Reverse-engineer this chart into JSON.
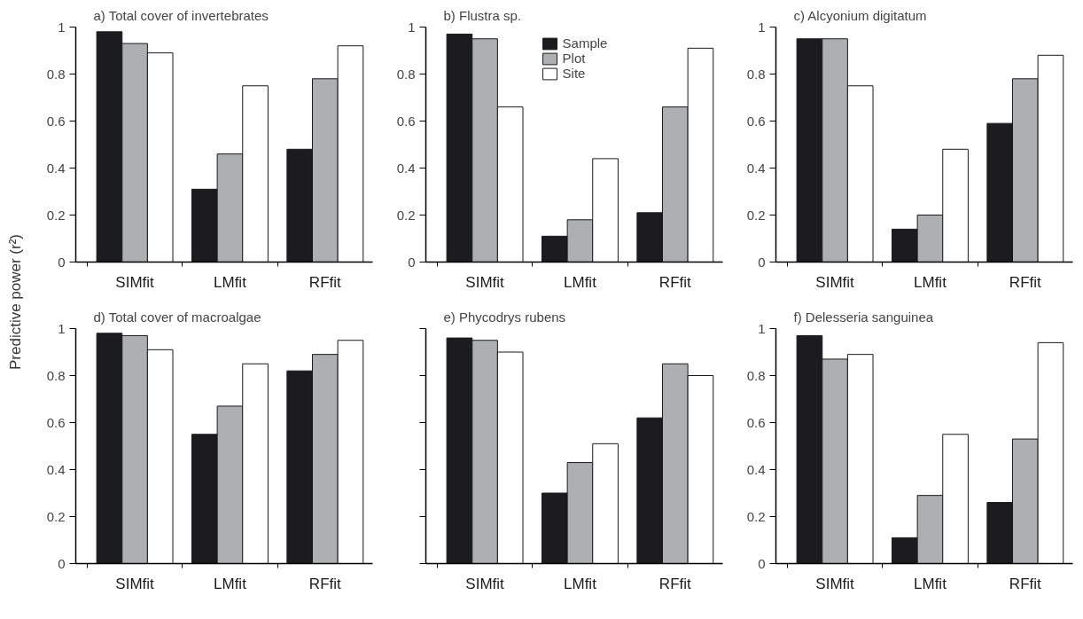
{
  "chart_data": [
    {
      "type": "bar",
      "title": "a) Total cover of invertebrates",
      "ylabel": "Predictive power (r²)",
      "categories": [
        "SIMfit",
        "LMfit",
        "RFfit"
      ],
      "ylim": [
        0,
        1
      ],
      "yticks": [
        0,
        0.2,
        0.4,
        0.6,
        0.8,
        1
      ],
      "grid": false,
      "legend": false,
      "series": [
        {
          "color": "#1c1c1e",
          "values": [
            0.98,
            0.31,
            0.48
          ]
        },
        {
          "color": "#aeafb1",
          "values": [
            0.93,
            0.46,
            0.78
          ]
        },
        {
          "color": "#ffffff",
          "values": [
            0.89,
            0.75,
            0.92
          ]
        }
      ]
    },
    {
      "type": "bar",
      "title": "b) Flustra sp.",
      "categories": [
        "SIMfit",
        "LMfit",
        "RFfit"
      ],
      "ylim": [
        0,
        1
      ],
      "yticks": [
        0,
        0.2,
        0.4,
        0.6,
        0.8,
        1
      ],
      "grid": false,
      "legend": "top",
      "series": [
        {
          "name": "Sample",
          "color": "#1c1c1e",
          "values": [
            0.97,
            0.11,
            0.21
          ]
        },
        {
          "name": "Plot",
          "color": "#aeafb1",
          "values": [
            0.95,
            0.18,
            0.66
          ]
        },
        {
          "name": "Site",
          "color": "#ffffff",
          "values": [
            0.66,
            0.44,
            0.91
          ]
        }
      ]
    },
    {
      "type": "bar",
      "title": "c) Alcyonium digitatum",
      "categories": [
        "SIMfit",
        "LMfit",
        "RFfit"
      ],
      "ylim": [
        0,
        1
      ],
      "yticks": [
        0,
        0.2,
        0.4,
        0.6,
        0.8,
        1
      ],
      "grid": false,
      "legend": false,
      "series": [
        {
          "color": "#1c1c1e",
          "values": [
            0.95,
            0.14,
            0.59
          ]
        },
        {
          "color": "#aeafb1",
          "values": [
            0.95,
            0.2,
            0.78
          ]
        },
        {
          "color": "#ffffff",
          "values": [
            0.75,
            0.48,
            0.88
          ]
        }
      ]
    },
    {
      "type": "bar",
      "title": "d) Total cover of macroalgae",
      "categories": [
        "SIMfit",
        "LMfit",
        "RFfit"
      ],
      "ylim": [
        0,
        1
      ],
      "yticks": [
        0,
        0.2,
        0.4,
        0.6,
        0.8,
        1
      ],
      "grid": false,
      "legend": false,
      "series": [
        {
          "color": "#1c1c1e",
          "values": [
            0.98,
            0.55,
            0.82
          ]
        },
        {
          "color": "#aeafb1",
          "values": [
            0.97,
            0.67,
            0.89
          ]
        },
        {
          "color": "#ffffff",
          "values": [
            0.91,
            0.85,
            0.95
          ]
        }
      ]
    },
    {
      "type": "bar",
      "title": "e) Phycodrys rubens",
      "categories": [
        "SIMfit",
        "LMfit",
        "RFfit"
      ],
      "ylim": [
        0,
        1
      ],
      "yticks": [
        0,
        0.2,
        0.4,
        0.6,
        0.8,
        1
      ],
      "tick_labels": "x",
      "grid": false,
      "legend": false,
      "series": [
        {
          "color": "#1c1c1e",
          "values": [
            0.96,
            0.3,
            0.62
          ]
        },
        {
          "color": "#aeafb1",
          "values": [
            0.95,
            0.43,
            0.85
          ]
        },
        {
          "color": "#ffffff",
          "values": [
            0.9,
            0.51,
            0.8
          ]
        }
      ]
    },
    {
      "type": "bar",
      "title": "f) Delesseria sanguinea",
      "categories": [
        "SIMfit",
        "LMfit",
        "RFfit"
      ],
      "ylim": [
        0,
        1
      ],
      "yticks": [
        0,
        0.2,
        0.4,
        0.6,
        0.8,
        1
      ],
      "grid": false,
      "legend": false,
      "series": [
        {
          "color": "#1c1c1e",
          "values": [
            0.97,
            0.11,
            0.26
          ]
        },
        {
          "color": "#aeafb1",
          "values": [
            0.87,
            0.29,
            0.53
          ]
        },
        {
          "color": "#ffffff",
          "values": [
            0.89,
            0.55,
            0.94
          ]
        }
      ]
    }
  ]
}
